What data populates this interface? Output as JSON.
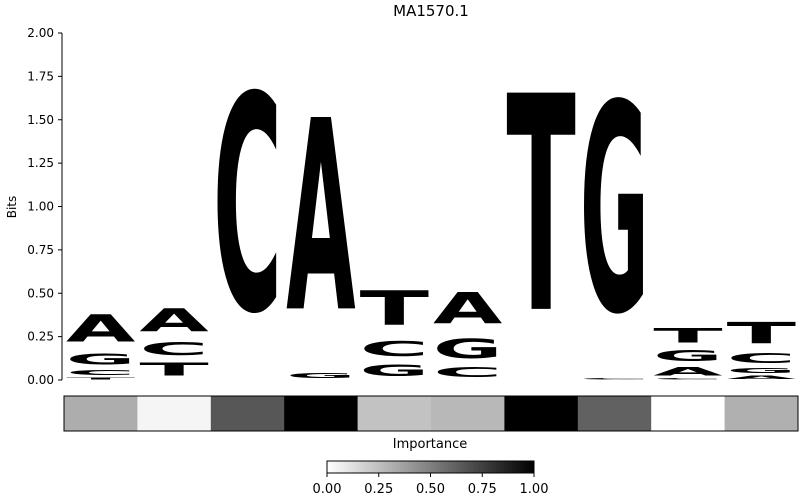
{
  "chart_data": {
    "type": "sequence-logo",
    "title": "MA1570.1",
    "ylabel": "Bits",
    "ylim": [
      0,
      2.0
    ],
    "yticks": [
      "0.00",
      "0.25",
      "0.50",
      "0.75",
      "1.00",
      "1.25",
      "1.50",
      "1.75",
      "2.00"
    ],
    "grid": false,
    "colors": {
      "A": "#4ea44e",
      "C": "#4b4bf7",
      "G": "#ffbd4a",
      "T": "#fd4b4b"
    },
    "positions": [
      [
        {
          "base": "T",
          "bits": 0.02
        },
        {
          "base": "C",
          "bits": 0.05
        },
        {
          "base": "G",
          "bits": 0.1
        },
        {
          "base": "A",
          "bits": 0.25
        }
      ],
      [
        {
          "base": "T",
          "bits": 0.12
        },
        {
          "base": "C",
          "bits": 0.12
        },
        {
          "base": "A",
          "bits": 0.21
        }
      ],
      [
        {
          "base": "C",
          "bits": 2.0
        }
      ],
      [
        {
          "base": "G",
          "bits": 0.05
        },
        {
          "base": "A",
          "bits": 1.77
        }
      ],
      [
        {
          "base": "G",
          "bits": 0.11
        },
        {
          "base": "C",
          "bits": 0.14
        },
        {
          "base": "T",
          "bits": 0.32
        }
      ],
      [
        {
          "base": "C",
          "bits": 0.09
        },
        {
          "base": "G",
          "bits": 0.18
        },
        {
          "base": "A",
          "bits": 0.29
        }
      ],
      [
        {
          "base": "T",
          "bits": 2.0
        }
      ],
      [
        {
          "base": "C",
          "bits": 0.01
        },
        {
          "base": "G",
          "bits": 1.93
        }
      ],
      [
        {
          "base": "C",
          "bits": 0.01
        },
        {
          "base": "A",
          "bits": 0.08
        },
        {
          "base": "G",
          "bits": 0.1
        },
        {
          "base": "T",
          "bits": 0.13
        }
      ],
      [
        {
          "base": "A",
          "bits": 0.03
        },
        {
          "base": "G",
          "bits": 0.05
        },
        {
          "base": "C",
          "bits": 0.09
        },
        {
          "base": "T",
          "bits": 0.2
        }
      ]
    ],
    "importance": {
      "label": "Importance",
      "values": [
        0.32,
        0.04,
        0.66,
        1.0,
        0.24,
        0.28,
        1.0,
        0.62,
        0.0,
        0.31
      ],
      "colorbar_ticks": [
        "0.00",
        "0.25",
        "0.50",
        "0.75",
        "1.00"
      ],
      "range": [
        0,
        1
      ]
    }
  }
}
